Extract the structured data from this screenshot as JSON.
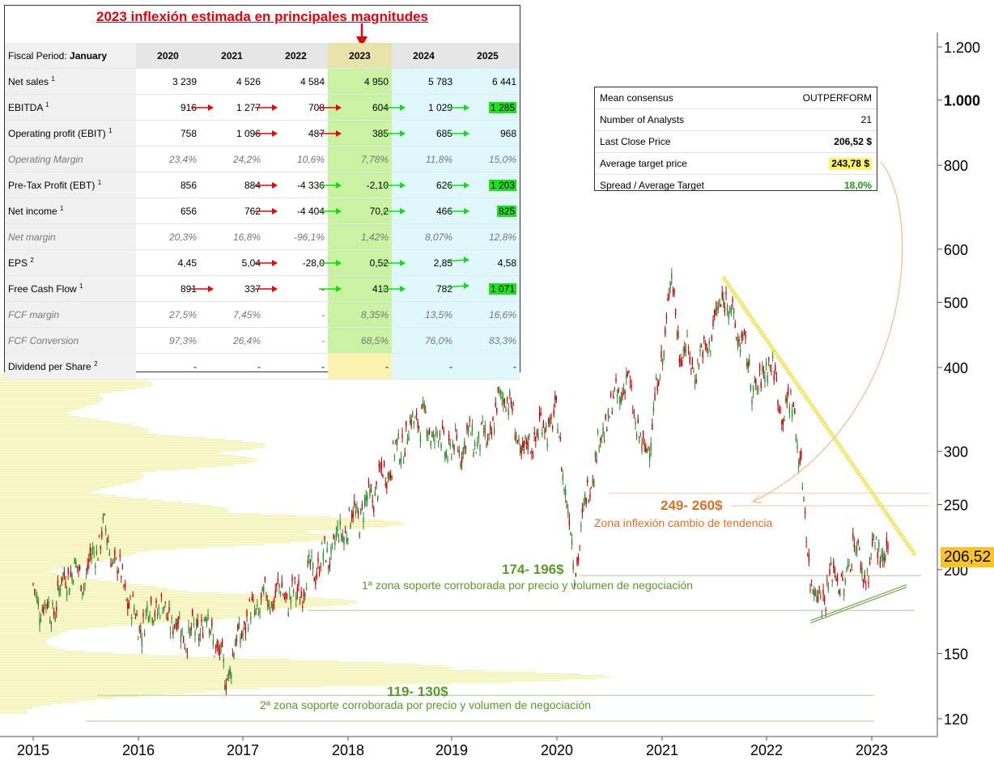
{
  "chart_data": {
    "type": "candlestick",
    "title": "2023 inflexión estimada en principales magnitudes",
    "x_ticks": [
      "2015",
      "2016",
      "2017",
      "2018",
      "2019",
      "2020",
      "2021",
      "2022",
      "2023"
    ],
    "y_scale": "log",
    "y_ticks": [
      "1.200",
      "1.000",
      "800",
      "600",
      "500",
      "400",
      "300",
      "250",
      "200",
      "150",
      "120"
    ],
    "ylim": [
      110,
      1300
    ],
    "last_price_label": "206,52",
    "price_path": [
      [
        "2015-01",
        185
      ],
      [
        "2015-03",
        172
      ],
      [
        "2015-05",
        200
      ],
      [
        "2015-07",
        195
      ],
      [
        "2015-09",
        230
      ],
      [
        "2015-11",
        195
      ],
      [
        "2016-01",
        165
      ],
      [
        "2016-03",
        178
      ],
      [
        "2016-05",
        168
      ],
      [
        "2016-07",
        158
      ],
      [
        "2016-09",
        170
      ],
      [
        "2016-11",
        138
      ],
      [
        "2017-01",
        165
      ],
      [
        "2017-03",
        178
      ],
      [
        "2017-05",
        185
      ],
      [
        "2017-07",
        182
      ],
      [
        "2017-09",
        200
      ],
      [
        "2017-11",
        212
      ],
      [
        "2018-01",
        235
      ],
      [
        "2018-03",
        248
      ],
      [
        "2018-05",
        275
      ],
      [
        "2018-07",
        305
      ],
      [
        "2018-09",
        340
      ],
      [
        "2018-11",
        318
      ],
      [
        "2019-01",
        300
      ],
      [
        "2019-03",
        315
      ],
      [
        "2019-05",
        310
      ],
      [
        "2019-07",
        375
      ],
      [
        "2019-09",
        295
      ],
      [
        "2019-11",
        325
      ],
      [
        "2020-01",
        335
      ],
      [
        "2020-03",
        200
      ],
      [
        "2020-05",
        285
      ],
      [
        "2020-07",
        345
      ],
      [
        "2020-09",
        385
      ],
      [
        "2020-11",
        290
      ],
      [
        "2021-01",
        410
      ],
      [
        "2021-02",
        550
      ],
      [
        "2021-03",
        430
      ],
      [
        "2021-05",
        400
      ],
      [
        "2021-07",
        460
      ],
      [
        "2021-08",
        520
      ],
      [
        "2021-10",
        440
      ],
      [
        "2021-12",
        360
      ],
      [
        "2022-01",
        420
      ],
      [
        "2022-03",
        340
      ],
      [
        "2022-04",
        360
      ],
      [
        "2022-05",
        270
      ],
      [
        "2022-06",
        195
      ],
      [
        "2022-07",
        180
      ],
      [
        "2022-09",
        200
      ],
      [
        "2022-10",
        185
      ],
      [
        "2022-11",
        230
      ],
      [
        "2022-12",
        190
      ],
      [
        "2023-01",
        215
      ],
      [
        "2023-03",
        206.52
      ]
    ],
    "annotations": [
      {
        "price": "249- 260$",
        "text": "Zona inflexión cambio de tendencia",
        "color": "#e07020"
      },
      {
        "price": "174- 196$",
        "text": "1ª zona soporte corroborada por precio y volumen de negociación",
        "color": "#5a9a2a"
      },
      {
        "price": "119- 130$",
        "text": "2ª zona soporte corroborada por precio y volumen de negociación",
        "color": "#5a9a2a"
      }
    ],
    "levels": {
      "inflexion": [
        249,
        260
      ],
      "support_1": [
        174,
        196
      ],
      "support_2": [
        119,
        130
      ]
    },
    "trendlines": {
      "resistance": [
        [
          "2021-08",
          545
        ],
        [
          "2023-06",
          210
        ]
      ],
      "support": [
        [
          "2022-06",
          168
        ],
        [
          "2023-05",
          190
        ]
      ]
    },
    "colors": {
      "up": "#2a8a2a",
      "down": "#c00000",
      "volume_profile": "#f2f2a0",
      "resistance": "#f0e040"
    }
  },
  "financials": {
    "period_label": "Fiscal Period:",
    "period_value": "January",
    "years": [
      "2020",
      "2021",
      "2022",
      "2023",
      "2024",
      "2025"
    ],
    "rows": [
      {
        "label": "Net sales",
        "sup": "1",
        "italic": false,
        "values": [
          "3 239",
          "4 526",
          "4 584",
          "4 950",
          "5 783",
          "6 441"
        ],
        "arrows": [
          "",
          "",
          "",
          "",
          "",
          ""
        ],
        "highlight": -1
      },
      {
        "label": "EBITDA",
        "sup": "1",
        "italic": false,
        "values": [
          "916",
          "1 277",
          "708",
          "604",
          "1 029",
          "1 285"
        ],
        "arrows": [
          "",
          "red",
          "red",
          "red",
          "green",
          "green"
        ],
        "highlight": 5
      },
      {
        "label": "Operating profit (EBIT)",
        "sup": "1",
        "italic": false,
        "values": [
          "758",
          "1 096",
          "487",
          "385",
          "685",
          "968"
        ],
        "arrows": [
          "",
          "",
          "red",
          "red",
          "green",
          "green"
        ],
        "highlight": -1
      },
      {
        "label": "Operating Margin",
        "sup": "",
        "italic": true,
        "values": [
          "23,4%",
          "24,2%",
          "10,6%",
          "7,78%",
          "11,8%",
          "15,0%"
        ],
        "arrows": [
          "",
          "",
          "",
          "",
          "",
          ""
        ],
        "highlight": -1
      },
      {
        "label": "Pre-Tax Profit (EBT)",
        "sup": "1",
        "italic": false,
        "values": [
          "856",
          "884",
          "-4 336",
          "-2,10",
          "626",
          "1 203"
        ],
        "arrows": [
          "",
          "",
          "red",
          "green",
          "green",
          "green"
        ],
        "highlight": 5
      },
      {
        "label": "Net income",
        "sup": "1",
        "italic": false,
        "values": [
          "656",
          "762",
          "-4 404",
          "70,2",
          "466",
          "825"
        ],
        "arrows": [
          "",
          "",
          "red",
          "green",
          "green",
          "green"
        ],
        "highlight": 5
      },
      {
        "label": "Net margin",
        "sup": "",
        "italic": true,
        "values": [
          "20,3%",
          "16,8%",
          "-96,1%",
          "1,42%",
          "8,07%",
          "12,8%"
        ],
        "arrows": [
          "",
          "",
          "",
          "",
          "",
          ""
        ],
        "highlight": -1
      },
      {
        "label": "EPS",
        "sup": "2",
        "italic": false,
        "values": [
          "4,45",
          "5,04",
          "-28,0",
          "0,52",
          "2,85",
          "4,58"
        ],
        "arrows": [
          "",
          "",
          "red",
          "green",
          "green",
          "green-up"
        ],
        "highlight": -1
      },
      {
        "label": "Free Cash Flow",
        "sup": "1",
        "italic": false,
        "values": [
          "891",
          "337",
          "-",
          "413",
          "782",
          "1 071"
        ],
        "arrows": [
          "",
          "red",
          "red",
          "green",
          "green",
          "green-up"
        ],
        "highlight": 5
      },
      {
        "label": "FCF margin",
        "sup": "",
        "italic": true,
        "values": [
          "27,5%",
          "7,45%",
          "-",
          "8,35%",
          "13,5%",
          "16,6%"
        ],
        "arrows": [
          "",
          "",
          "",
          "",
          "",
          ""
        ],
        "highlight": -1
      },
      {
        "label": "FCF Conversion",
        "sup": "",
        "italic": true,
        "values": [
          "97,3%",
          "26,4%",
          "-",
          "68,5%",
          "76,0%",
          "83,3%"
        ],
        "arrows": [
          "",
          "",
          "",
          "",
          "",
          ""
        ],
        "highlight": -1
      },
      {
        "label": "Dividend per Share",
        "sup": "2",
        "italic": false,
        "values": [
          "-",
          "-",
          "-",
          "-",
          "-",
          "-"
        ],
        "arrows": [
          "",
          "",
          "",
          "",
          "",
          ""
        ],
        "highlight": -1
      }
    ]
  },
  "consensus": {
    "rows": [
      {
        "label": "Mean consensus",
        "value": "OUTPERFORM",
        "style": ""
      },
      {
        "label": "Number of Analysts",
        "value": "21",
        "style": ""
      },
      {
        "label": "Last Close Price",
        "value": "206,52 $",
        "style": "b"
      },
      {
        "label": "Average target price",
        "value": "243,78 $",
        "style": "b yl"
      },
      {
        "label": "Spread / Average Target",
        "value": "18,0%",
        "style": "b gr"
      }
    ]
  }
}
